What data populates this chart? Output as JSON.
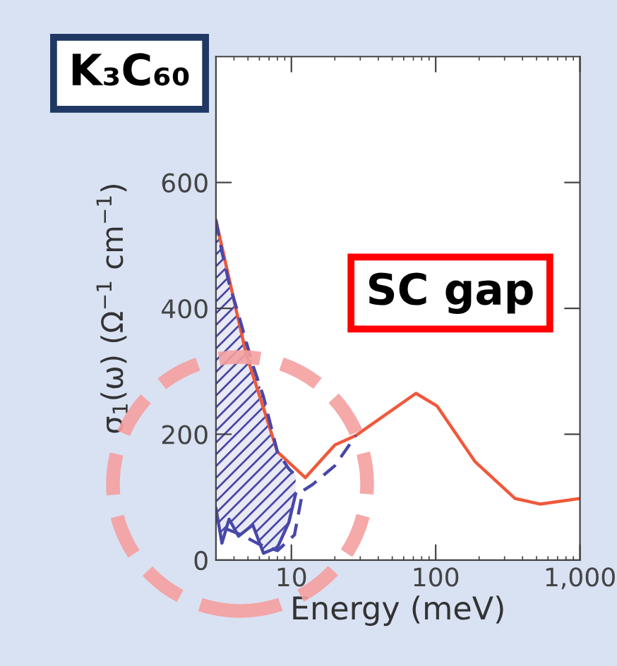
{
  "chart_data": {
    "type": "line",
    "xlabel": "Energy (meV)",
    "ylabel": "σ$_{1}$(ω) (Ω$^{−1}$ cm$^{−1}$)",
    "log": "x",
    "xlim": [
      3,
      1000
    ],
    "xticks": [
      10,
      100,
      {
        "value": 1000,
        "label": "1,000"
      }
    ],
    "ylim": [
      0,
      800
    ],
    "yticks": [
      0,
      200,
      400,
      600
    ],
    "grid": false,
    "legend": false,
    "series": [
      {
        "color": "#f0583a",
        "x": [
          3,
          4.85,
          8,
          12.5,
          20,
          28,
          73,
          102,
          188,
          354,
          530,
          1000
        ],
        "values": [
          540,
          328,
          172,
          131,
          183,
          198,
          265,
          245,
          156,
          98,
          89,
          98
        ]
      },
      {
        "color": "#4848a8",
        "line_style": "dashed",
        "x": [
          3.5,
          4.5,
          6,
          8,
          10.5,
          12,
          14,
          20,
          28
        ],
        "values": [
          50,
          40,
          25,
          15,
          40,
          110,
          120,
          150,
          198
        ]
      },
      {
        "color": "#4848a8",
        "x": [
          3,
          3.3,
          3.7,
          4.3,
          5.4,
          6.4,
          8,
          9.6,
          10.7
        ],
        "values": [
          82,
          27,
          65,
          38,
          56,
          11,
          20,
          60,
          105
        ],
        "lower": [
          82,
          27,
          65,
          38,
          56,
          11,
          20,
          60,
          105
        ],
        "upper": [
          540,
          490,
          440,
          390,
          310,
          260,
          172,
          145,
          135
        ]
      },
      {
        "color": "#4848a8",
        "line_style": "dashed",
        "x": [
          3,
          3.3,
          3.7,
          4.3,
          5.4,
          6.4,
          8,
          9.6,
          10.7
        ],
        "values": [
          540,
          490,
          440,
          390,
          310,
          260,
          172,
          145,
          135
        ]
      }
    ],
    "annotations": [
      "K₃C₆₀",
      "SC gap"
    ]
  }
}
